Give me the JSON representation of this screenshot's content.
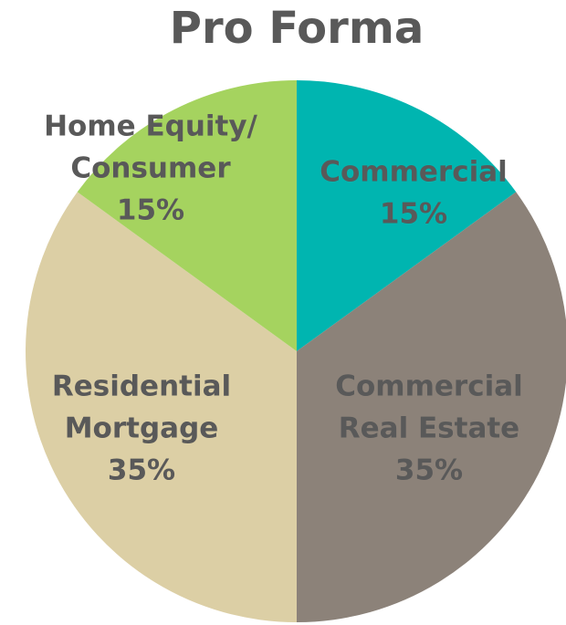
{
  "chart_data": {
    "type": "pie",
    "title": "Pro Forma",
    "categories": [
      [
        "Commercial"
      ],
      [
        "Commercial",
        "Real Estate"
      ],
      [
        "Residential",
        "Mortgage"
      ],
      [
        "Home Equity/",
        "Consumer"
      ]
    ],
    "values": [
      15,
      35,
      35,
      15
    ],
    "value_labels": [
      "15%",
      "35%",
      "35%",
      "15%"
    ],
    "colors": [
      "#00b5b0",
      "#8c8279",
      "#dccfa5",
      "#a5d35f"
    ]
  }
}
